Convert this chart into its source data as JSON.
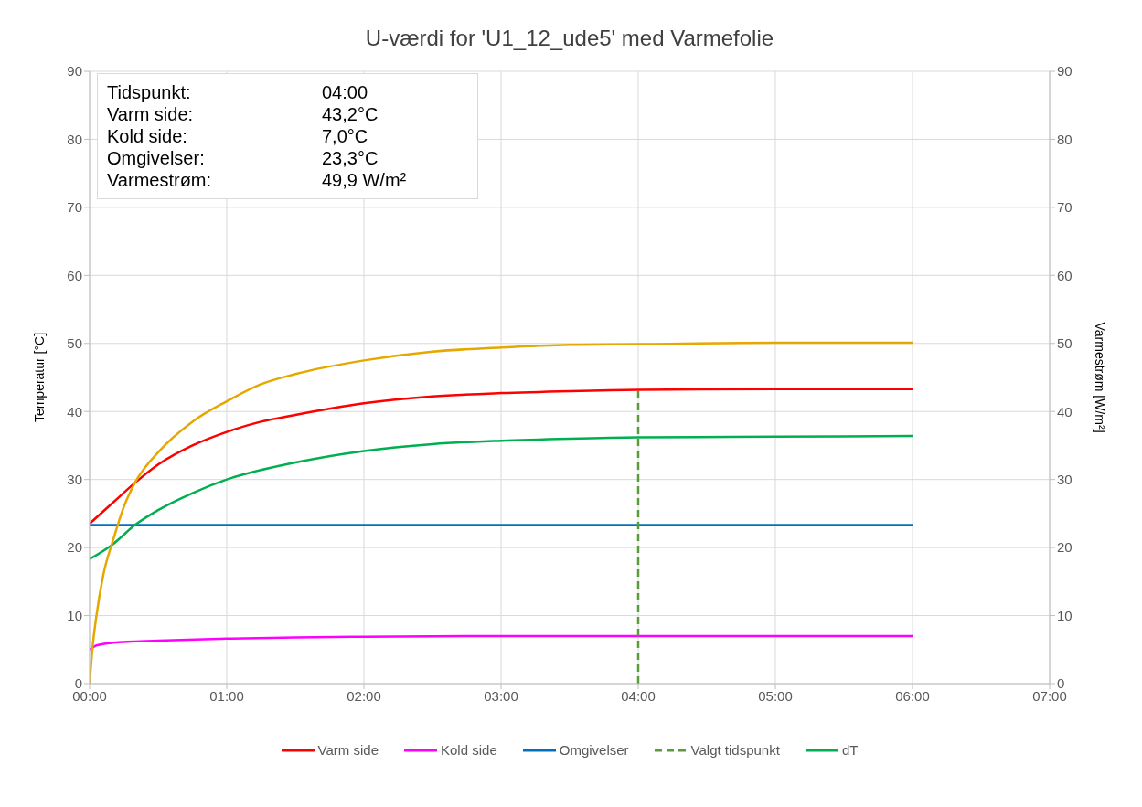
{
  "chart_data": {
    "type": "line",
    "title": "U-værdi for 'U1_12_ude5' med Varmefolie",
    "ylabel": "Temperatur [°C]",
    "y2label": "Varmestrøm [W/m²]",
    "xlim": [
      0,
      7
    ],
    "xticks": [
      {
        "value": 0,
        "label": "00:00"
      },
      {
        "value": 1,
        "label": "01:00"
      },
      {
        "value": 2,
        "label": "02:00"
      },
      {
        "value": 3,
        "label": "03:00"
      },
      {
        "value": 4,
        "label": "04:00"
      },
      {
        "value": 5,
        "label": "05:00"
      },
      {
        "value": 6,
        "label": "06:00"
      },
      {
        "value": 7,
        "label": "07:00"
      }
    ],
    "ylim": [
      0,
      90
    ],
    "yticks": [
      0,
      10,
      20,
      30,
      40,
      50,
      60,
      70,
      80,
      90
    ],
    "y2lim": [
      0,
      90
    ],
    "y2ticks": [
      0,
      10,
      20,
      30,
      40,
      50,
      60,
      70,
      80,
      90
    ],
    "grid": true,
    "legend": "bottom",
    "marker": "none",
    "annotations": [
      "Tidspunkt:",
      "04:00",
      "Varm side:",
      "43,2°C",
      "Kold side:",
      "7,0°C",
      "Omgivelser:",
      "23,3°C",
      "Varmestrøm:",
      "49,9 W/m²"
    ],
    "series": [
      {
        "name": "Varm side",
        "color": "#ff0000",
        "x": [
          0,
          0.17,
          0.33,
          0.5,
          0.75,
          1,
          1.25,
          1.5,
          2,
          2.5,
          3,
          3.5,
          4,
          5,
          6
        ],
        "values": [
          23.5,
          26.6,
          29.5,
          32.2,
          35,
          37,
          38.5,
          39.5,
          41.2,
          42.2,
          42.7,
          43,
          43.2,
          43.3,
          43.3
        ]
      },
      {
        "name": "Kold side",
        "color": "#ff00ff",
        "x": [
          0,
          0.05,
          0.17,
          0.5,
          1,
          1.5,
          2,
          3,
          4,
          5,
          6
        ],
        "values": [
          5,
          5.6,
          6,
          6.3,
          6.6,
          6.8,
          6.9,
          7,
          7,
          7,
          7
        ]
      },
      {
        "name": "Omgivelser",
        "color": "#0070c0",
        "x": [
          0,
          6
        ],
        "values": [
          23.3,
          23.3
        ]
      },
      {
        "name": "Valgt tidspunkt",
        "color": "#5b9b3a",
        "line_style": "dashed",
        "x": [
          4,
          4
        ],
        "values": [
          0,
          43.2
        ]
      },
      {
        "name": "dT",
        "color": "#00b050",
        "x": [
          0,
          0.17,
          0.33,
          0.5,
          0.75,
          1,
          1.5,
          2,
          2.5,
          3,
          3.5,
          4,
          5,
          6
        ],
        "values": [
          18.3,
          20.5,
          23.3,
          25.5,
          28,
          30,
          32.5,
          34.2,
          35.2,
          35.7,
          36,
          36.2,
          36.3,
          36.4
        ]
      },
      {
        "color": "#e6a800",
        "axis": "y2",
        "x": [
          0,
          0.02,
          0.05,
          0.1,
          0.17,
          0.25,
          0.33,
          0.5,
          0.75,
          1,
          1.25,
          1.5,
          2,
          2.5,
          3,
          3.5,
          4,
          5,
          6
        ],
        "values": [
          0,
          5,
          10,
          16,
          21,
          26,
          29.5,
          34,
          38.5,
          41.5,
          44,
          45.5,
          47.5,
          48.8,
          49.4,
          49.8,
          49.9,
          50.1,
          50.1
        ]
      }
    ]
  }
}
